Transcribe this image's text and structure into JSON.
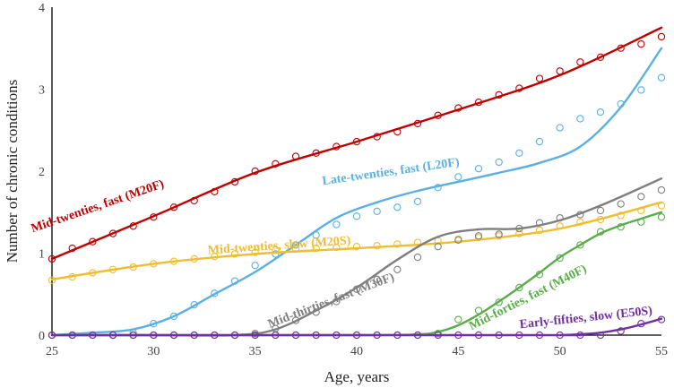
{
  "chart_data": {
    "type": "line",
    "title": "",
    "xlabel": "Age, years",
    "ylabel": "Number of chronic conditions",
    "xlim": [
      25,
      55
    ],
    "ylim": [
      0,
      4
    ],
    "x_ticks": [
      25,
      30,
      35,
      40,
      45,
      50,
      55
    ],
    "y_ticks": [
      0,
      1,
      2,
      3,
      4
    ],
    "grid": false,
    "legend": "inline labels",
    "series": [
      {
        "name": "Mid-twenties, fast (M20F)",
        "color": "#c00000",
        "fit_x": [
          25,
          30,
          35,
          40,
          45,
          50,
          55
        ],
        "fit_y": [
          0.93,
          1.45,
          1.98,
          2.36,
          2.75,
          3.17,
          3.75
        ],
        "obs_x": [
          25,
          26,
          27,
          28,
          29,
          30,
          31,
          32,
          33,
          34,
          35,
          36,
          37,
          38,
          39,
          40,
          41,
          42,
          43,
          44,
          45,
          46,
          47,
          48,
          49,
          50,
          51,
          52,
          53,
          54,
          55
        ],
        "obs_y": [
          0.93,
          1.06,
          1.14,
          1.24,
          1.33,
          1.44,
          1.56,
          1.64,
          1.75,
          1.87,
          2.0,
          2.09,
          2.18,
          2.22,
          2.3,
          2.36,
          2.42,
          2.48,
          2.58,
          2.68,
          2.77,
          2.84,
          2.93,
          3.01,
          3.13,
          3.22,
          3.33,
          3.39,
          3.5,
          3.55,
          3.64
        ]
      },
      {
        "name": "Late-twenties, fast (L20F)",
        "color": "#5ab0e4",
        "fit_x": [
          25,
          27,
          29,
          31,
          33,
          35,
          37,
          39,
          41,
          43,
          45,
          47,
          49,
          51,
          53,
          55
        ],
        "fit_y": [
          0.0,
          0.03,
          0.07,
          0.23,
          0.5,
          0.77,
          1.1,
          1.43,
          1.62,
          1.76,
          1.87,
          1.98,
          2.1,
          2.3,
          2.78,
          3.5
        ],
        "obs_x": [
          25,
          26,
          27,
          28,
          29,
          30,
          31,
          32,
          33,
          34,
          35,
          36,
          37,
          38,
          39,
          40,
          41,
          42,
          43,
          44,
          45,
          46,
          47,
          48,
          49,
          50,
          51,
          52,
          53,
          54,
          55
        ],
        "obs_y": [
          0.0,
          0.0,
          0.0,
          0.0,
          0.03,
          0.14,
          0.23,
          0.37,
          0.51,
          0.66,
          0.85,
          0.99,
          1.1,
          1.22,
          1.35,
          1.45,
          1.51,
          1.56,
          1.63,
          1.8,
          1.93,
          2.03,
          2.11,
          2.22,
          2.36,
          2.53,
          2.64,
          2.72,
          2.82,
          2.99,
          3.14
        ]
      },
      {
        "name": "Mid-twenties, slow (M20S)",
        "color": "#f0bc30",
        "fit_x": [
          25,
          30,
          35,
          40,
          45,
          50,
          55
        ],
        "fit_y": [
          0.68,
          0.87,
          0.99,
          1.06,
          1.14,
          1.3,
          1.62
        ],
        "obs_x": [
          25,
          26,
          27,
          28,
          29,
          30,
          31,
          32,
          33,
          34,
          35,
          36,
          37,
          38,
          39,
          40,
          41,
          42,
          43,
          44,
          45,
          46,
          47,
          48,
          49,
          50,
          51,
          52,
          53,
          54,
          55
        ],
        "obs_y": [
          0.67,
          0.71,
          0.76,
          0.8,
          0.83,
          0.87,
          0.9,
          0.93,
          0.96,
          0.99,
          1.01,
          1.04,
          1.05,
          1.06,
          1.07,
          1.08,
          1.09,
          1.11,
          1.13,
          1.15,
          1.17,
          1.19,
          1.21,
          1.24,
          1.28,
          1.33,
          1.38,
          1.41,
          1.46,
          1.52,
          1.58
        ]
      },
      {
        "name": "Mid-thirties, fast (M30F)",
        "color": "#7f7f7f",
        "fit_x": [
          25,
          30,
          34,
          36,
          38,
          40,
          42,
          44,
          46,
          48,
          50,
          52,
          55
        ],
        "fit_y": [
          0.0,
          0.0,
          0.0,
          0.07,
          0.3,
          0.58,
          0.92,
          1.2,
          1.29,
          1.3,
          1.4,
          1.58,
          1.91
        ],
        "obs_x": [
          25,
          26,
          27,
          28,
          29,
          30,
          31,
          32,
          33,
          34,
          35,
          36,
          37,
          38,
          39,
          40,
          41,
          42,
          43,
          44,
          45,
          46,
          47,
          48,
          49,
          50,
          51,
          52,
          53,
          54,
          55
        ],
        "obs_y": [
          0.0,
          0.0,
          0.0,
          0.0,
          0.0,
          0.0,
          0.0,
          0.0,
          0.0,
          0.0,
          0.02,
          0.08,
          0.18,
          0.28,
          0.41,
          0.56,
          0.68,
          0.8,
          0.95,
          1.08,
          1.16,
          1.21,
          1.23,
          1.3,
          1.37,
          1.43,
          1.47,
          1.52,
          1.6,
          1.69,
          1.77
        ]
      },
      {
        "name": "Mid-forties, fast (M40F)",
        "color": "#5aad4a",
        "fit_x": [
          25,
          40,
          43,
          44,
          45,
          46,
          47,
          48,
          49,
          50,
          51,
          52,
          53,
          54,
          55
        ],
        "fit_y": [
          0.0,
          0.0,
          0.01,
          0.04,
          0.12,
          0.25,
          0.41,
          0.58,
          0.76,
          0.95,
          1.1,
          1.24,
          1.34,
          1.42,
          1.5
        ],
        "obs_x": [
          25,
          26,
          27,
          28,
          29,
          30,
          31,
          32,
          33,
          34,
          35,
          36,
          37,
          38,
          39,
          40,
          41,
          42,
          43,
          44,
          45,
          46,
          47,
          48,
          49,
          50,
          51,
          52,
          53,
          54,
          55
        ],
        "obs_y": [
          0.0,
          0.0,
          0.0,
          0.0,
          0.0,
          0.0,
          0.0,
          0.0,
          0.0,
          0.0,
          0.0,
          0.0,
          0.0,
          0.0,
          0.0,
          0.0,
          0.0,
          0.0,
          0.0,
          0.02,
          0.19,
          0.3,
          0.4,
          0.58,
          0.74,
          0.94,
          1.1,
          1.26,
          1.32,
          1.38,
          1.44
        ]
      },
      {
        "name": "Early-fifties, slow (E50S)",
        "color": "#7030a0",
        "fit_x": [
          25,
          49,
          50,
          51,
          52,
          53,
          54,
          55
        ],
        "fit_y": [
          0.0,
          0.0,
          0.0,
          0.01,
          0.03,
          0.07,
          0.13,
          0.2
        ],
        "obs_x": [
          25,
          26,
          27,
          28,
          29,
          30,
          31,
          32,
          33,
          34,
          35,
          36,
          37,
          38,
          39,
          40,
          41,
          42,
          43,
          44,
          45,
          46,
          47,
          48,
          49,
          50,
          51,
          52,
          53,
          54,
          55
        ],
        "obs_y": [
          0.0,
          0.0,
          0.0,
          0.0,
          0.0,
          0.0,
          0.0,
          0.0,
          0.0,
          0.0,
          0.0,
          0.0,
          0.0,
          0.0,
          0.0,
          0.0,
          0.0,
          0.0,
          0.0,
          0.0,
          0.0,
          0.0,
          0.0,
          0.0,
          0.0,
          0.0,
          0.0,
          0.0,
          0.05,
          0.14,
          0.19
        ]
      }
    ],
    "annotations": [
      {
        "series": 0,
        "text": "Mid-twenties, fast (M20F)"
      },
      {
        "series": 1,
        "text": "Late-twenties, fast (L20F)"
      },
      {
        "series": 2,
        "text": "Mid-twenties, slow (M20S)"
      },
      {
        "series": 3,
        "text": "Mid-thirties, fast (M30F)"
      },
      {
        "series": 4,
        "text": "Mid-forties, fast (M40F)"
      },
      {
        "series": 5,
        "text": "Early-fifties, slow (E50S)"
      }
    ]
  }
}
